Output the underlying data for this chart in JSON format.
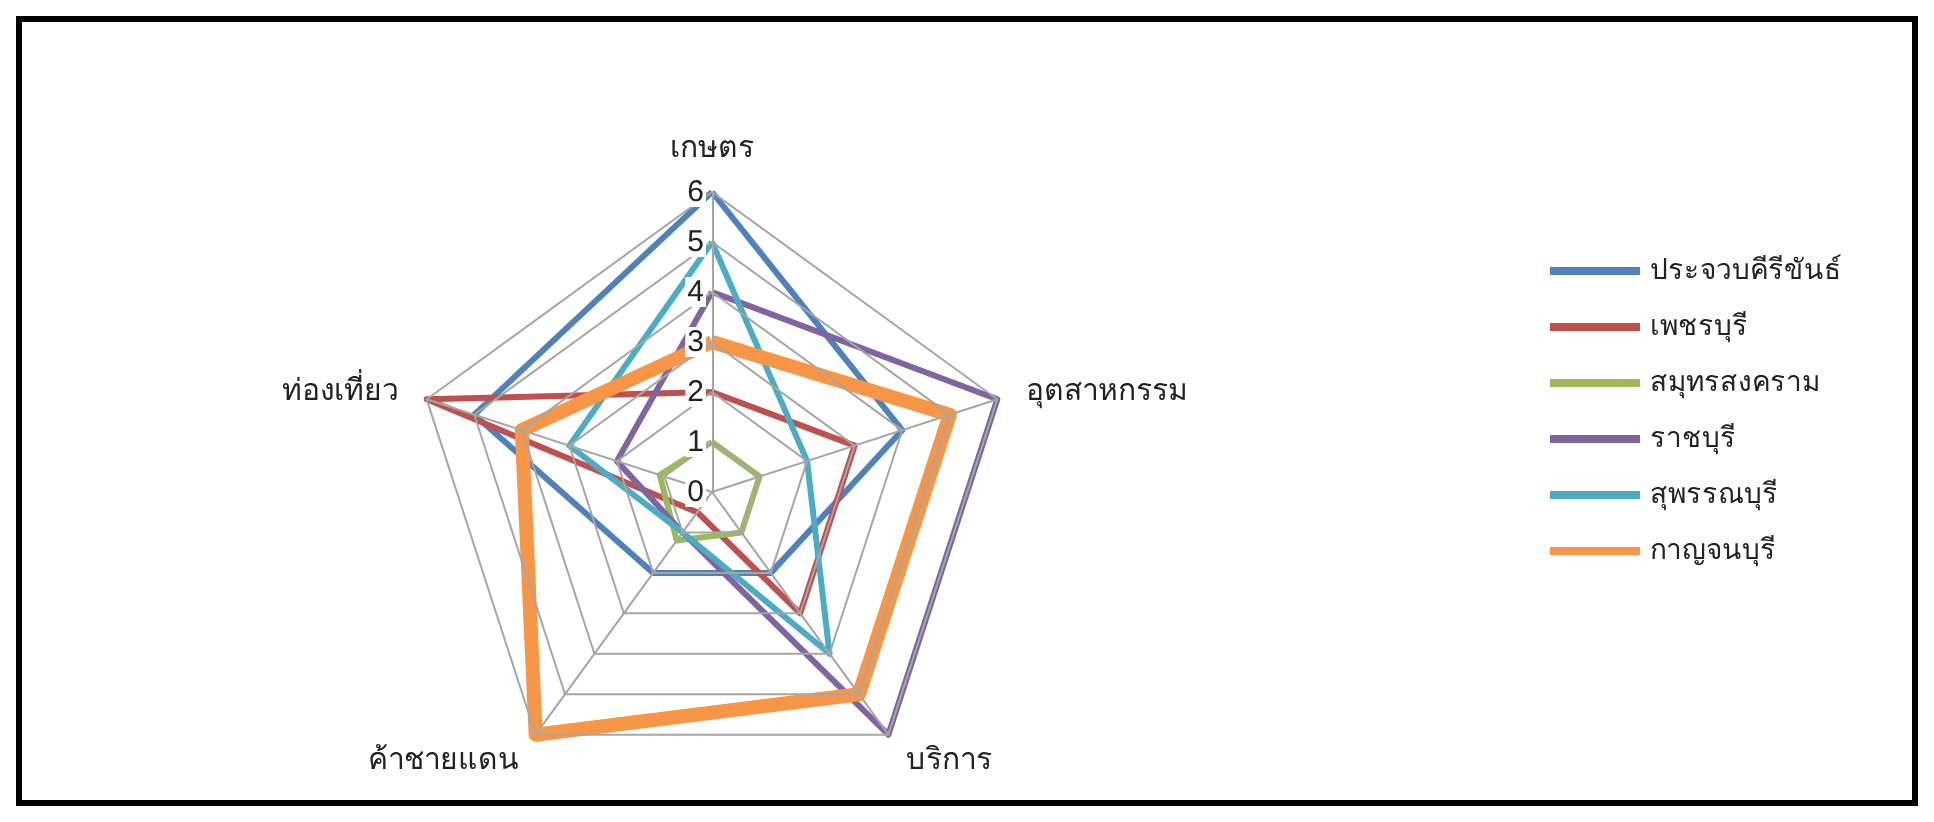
{
  "chart_data": {
    "type": "radar",
    "categories": [
      "เกษตร",
      "อุตสาหกรรม",
      "บริการ",
      "ค้าชายแดน",
      "ท่องเที่ยว"
    ],
    "ylim": [
      0,
      6
    ],
    "yticks": [
      0,
      1,
      2,
      3,
      4,
      5,
      6
    ],
    "grid": true,
    "legend": "right",
    "marker": "none",
    "series": [
      {
        "name": "ประจวบคีรีขันธ์",
        "color": "#4f81bd",
        "values": [
          6,
          4,
          2,
          2,
          5
        ]
      },
      {
        "name": "เพชรบุรี",
        "color": "#c0504d",
        "values": [
          2,
          3,
          3,
          0.5,
          6
        ]
      },
      {
        "name": "สมุทรสงคราม",
        "color": "#9bbb59",
        "values": [
          1,
          1,
          1,
          1.2,
          1.1
        ]
      },
      {
        "name": "ราชบุรี",
        "color": "#8064a2",
        "values": [
          4,
          6,
          6,
          1,
          2
        ]
      },
      {
        "name": "สุพรรณบุรี",
        "color": "#4bacc6",
        "values": [
          5,
          2,
          4,
          1,
          3
        ]
      },
      {
        "name": "กาญจนบุรี",
        "color": "#f79646",
        "values": [
          3,
          5,
          5,
          6,
          4
        ]
      }
    ]
  }
}
